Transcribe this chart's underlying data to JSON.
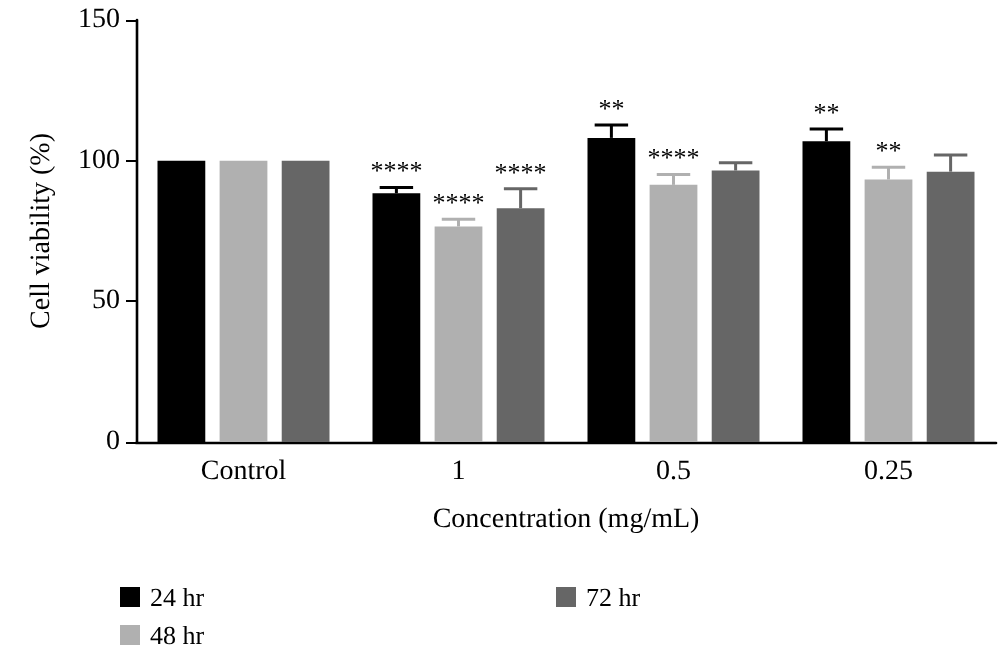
{
  "chart_data": {
    "type": "bar",
    "xlabel": "Concentration (mg/mL)",
    "ylabel": "Cell viability (%)",
    "categories": [
      "Control",
      "1",
      "0.5",
      "0.25"
    ],
    "series": [
      {
        "name": "24 hr",
        "color": "#000000",
        "values": [
          100,
          88.4,
          108.1,
          106.9
        ],
        "errors": [
          null,
          [
            88.4,
            90.5
          ],
          [
            108.1,
            112.7
          ],
          [
            106.9,
            111.3
          ]
        ],
        "value_labels": [
          null,
          "****",
          "**",
          "**"
        ]
      },
      {
        "name": "48 hr",
        "color": "#b0b0b0",
        "values": [
          100,
          76.6,
          91.4,
          93.3
        ],
        "errors": [
          null,
          [
            76.6,
            79.2
          ],
          [
            91.4,
            95.1
          ],
          [
            93.3,
            97.7
          ]
        ],
        "value_labels": [
          null,
          "****",
          "****",
          "**"
        ]
      },
      {
        "name": "72 hr",
        "color": "#666666",
        "values": [
          100,
          83.1,
          96.5,
          96.1
        ],
        "errors": [
          null,
          [
            83.1,
            90
          ],
          [
            96.5,
            99.3
          ],
          [
            96.1,
            102
          ]
        ],
        "value_labels": [
          null,
          "****",
          null,
          null
        ]
      }
    ],
    "ylim": [
      0,
      150
    ],
    "yticks": [
      0,
      50,
      100,
      150
    ],
    "grid": false,
    "legend": "bottom"
  }
}
